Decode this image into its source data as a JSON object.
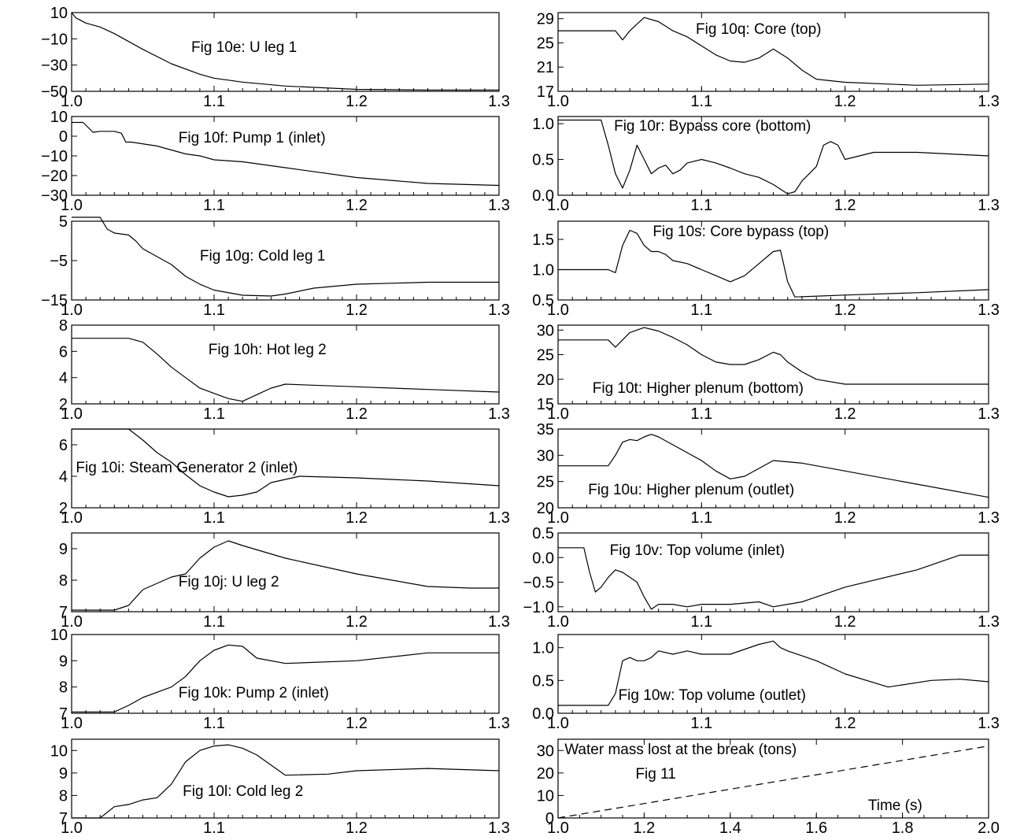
{
  "chart_data": [
    {
      "type": "line",
      "title": "Fig 10e: U leg 1",
      "xlim": [
        1.0,
        1.3
      ],
      "ylim": [
        -50,
        10
      ],
      "xticks": [
        "1.0",
        "1.1",
        "1.2",
        "1.3"
      ],
      "yticks": [
        {
          "v": 10,
          "label": "10"
        },
        {
          "v": -10,
          "label": "−10"
        },
        {
          "v": -30,
          "label": "−30"
        },
        {
          "v": -50,
          "label": "−50"
        }
      ],
      "x": [
        1.0,
        1.003,
        1.01,
        1.02,
        1.03,
        1.05,
        1.07,
        1.09,
        1.1,
        1.12,
        1.15,
        1.2,
        1.25,
        1.3
      ],
      "y": [
        10,
        6,
        2,
        -1,
        -6,
        -18,
        -29,
        -37,
        -40,
        -43,
        -46,
        -48.5,
        -49,
        -49
      ]
    },
    {
      "type": "line",
      "title": "Fig 10f: Pump 1 (inlet)",
      "xlim": [
        1.0,
        1.3
      ],
      "ylim": [
        -30,
        10
      ],
      "xticks": [
        "1.0",
        "1.1",
        "1.2",
        "1.3"
      ],
      "yticks": [
        {
          "v": 10,
          "label": "10"
        },
        {
          "v": 0,
          "label": "0"
        },
        {
          "v": -10,
          "label": "−10"
        },
        {
          "v": -20,
          "label": "−20"
        },
        {
          "v": -30,
          "label": "−30"
        }
      ],
      "x": [
        1.0,
        1.008,
        1.015,
        1.02,
        1.03,
        1.035,
        1.038,
        1.042,
        1.06,
        1.07,
        1.08,
        1.09,
        1.1,
        1.12,
        1.15,
        1.2,
        1.25,
        1.3
      ],
      "y": [
        7,
        7,
        2,
        2.5,
        2.5,
        1.5,
        -3,
        -3,
        -5,
        -7,
        -9,
        -10,
        -12,
        -13,
        -16,
        -21,
        -24,
        -25
      ]
    },
    {
      "type": "line",
      "title": "Fig 10g: Cold leg 1",
      "xlim": [
        1.0,
        1.3
      ],
      "ylim": [
        -15,
        5
      ],
      "xticks": [
        "1.0",
        "1.1",
        "1.2",
        "1.3"
      ],
      "yticks": [
        {
          "v": 5,
          "label": "5"
        },
        {
          "v": -5,
          "label": "−5"
        },
        {
          "v": -15,
          "label": "−15"
        }
      ],
      "x": [
        1.0,
        1.02,
        1.025,
        1.03,
        1.04,
        1.045,
        1.05,
        1.06,
        1.07,
        1.08,
        1.09,
        1.1,
        1.12,
        1.14,
        1.15,
        1.17,
        1.2,
        1.25,
        1.3
      ],
      "y": [
        6,
        6,
        3,
        2,
        1.5,
        0,
        -2,
        -4,
        -6,
        -9,
        -11,
        -12.5,
        -13.8,
        -14,
        -13.5,
        -12,
        -11,
        -10.5,
        -10.5
      ]
    },
    {
      "type": "line",
      "title": "Fig 10h: Hot leg 2",
      "xlim": [
        1.0,
        1.3
      ],
      "ylim": [
        2,
        8
      ],
      "xticks": [
        "1.0",
        "1.1",
        "1.2",
        "1.3"
      ],
      "yticks": [
        {
          "v": 8,
          "label": "8"
        },
        {
          "v": 6,
          "label": "6"
        },
        {
          "v": 4,
          "label": "4"
        },
        {
          "v": 2,
          "label": "2"
        }
      ],
      "x": [
        1.0,
        1.04,
        1.05,
        1.06,
        1.07,
        1.08,
        1.09,
        1.1,
        1.11,
        1.12,
        1.13,
        1.14,
        1.15,
        1.2,
        1.25,
        1.3
      ],
      "y": [
        7,
        7,
        6.7,
        5.8,
        4.8,
        4,
        3.2,
        2.8,
        2.4,
        2.2,
        2.7,
        3.2,
        3.5,
        3.3,
        3.1,
        2.9
      ]
    },
    {
      "type": "line",
      "title": "Fig 10i: Steam Generator 2 (inlet)",
      "xlim": [
        1.0,
        1.3
      ],
      "ylim": [
        2,
        7
      ],
      "xticks": [
        "1.0",
        "1.1",
        "1.2",
        "1.3"
      ],
      "yticks": [
        {
          "v": 6,
          "label": "6"
        },
        {
          "v": 4,
          "label": "4"
        },
        {
          "v": 2,
          "label": "2"
        }
      ],
      "x": [
        1.0,
        1.04,
        1.05,
        1.06,
        1.07,
        1.08,
        1.09,
        1.1,
        1.11,
        1.12,
        1.13,
        1.14,
        1.16,
        1.2,
        1.25,
        1.3
      ],
      "y": [
        7,
        7,
        6.3,
        5.5,
        4.9,
        4.1,
        3.4,
        3,
        2.7,
        2.8,
        3,
        3.6,
        4,
        3.9,
        3.7,
        3.4
      ]
    },
    {
      "type": "line",
      "title": "Fig 10j: U leg 2",
      "xlim": [
        1.0,
        1.3
      ],
      "ylim": [
        7,
        9.5
      ],
      "xticks": [
        "1.0",
        "1.1",
        "1.2",
        "1.3"
      ],
      "yticks": [
        {
          "v": 9,
          "label": "9"
        },
        {
          "v": 8,
          "label": "8"
        },
        {
          "v": 7,
          "label": "7"
        }
      ],
      "x": [
        1.0,
        1.03,
        1.04,
        1.05,
        1.06,
        1.07,
        1.08,
        1.09,
        1.1,
        1.11,
        1.12,
        1.15,
        1.2,
        1.25,
        1.28,
        1.3
      ],
      "y": [
        7.05,
        7.05,
        7.2,
        7.7,
        7.9,
        8.1,
        8.2,
        8.7,
        9.05,
        9.25,
        9.1,
        8.7,
        8.2,
        7.8,
        7.75,
        7.75
      ]
    },
    {
      "type": "line",
      "title": "Fig 10k: Pump 2 (inlet)",
      "xlim": [
        1.0,
        1.3
      ],
      "ylim": [
        7,
        10
      ],
      "xticks": [
        "1.0",
        "1.1",
        "1.2",
        "1.3"
      ],
      "yticks": [
        {
          "v": 10,
          "label": "10"
        },
        {
          "v": 9,
          "label": "9"
        },
        {
          "v": 8,
          "label": "8"
        },
        {
          "v": 7,
          "label": "7"
        }
      ],
      "x": [
        1.0,
        1.03,
        1.04,
        1.05,
        1.06,
        1.07,
        1.08,
        1.09,
        1.1,
        1.11,
        1.12,
        1.13,
        1.15,
        1.2,
        1.25,
        1.3
      ],
      "y": [
        7.05,
        7.05,
        7.3,
        7.6,
        7.8,
        8,
        8.4,
        9,
        9.4,
        9.6,
        9.55,
        9.1,
        8.9,
        9,
        9.3,
        9.3
      ]
    },
    {
      "type": "line",
      "title": "Fig 10l: Cold leg 2",
      "xlim": [
        1.0,
        1.3
      ],
      "ylim": [
        7,
        10.5
      ],
      "xticks": [
        "1.0",
        "1.1",
        "1.2",
        "1.3"
      ],
      "yticks": [
        {
          "v": 10,
          "label": "10"
        },
        {
          "v": 9,
          "label": "9"
        },
        {
          "v": 8,
          "label": "8"
        },
        {
          "v": 7,
          "label": "7"
        }
      ],
      "x": [
        1.0,
        1.02,
        1.03,
        1.04,
        1.05,
        1.06,
        1.07,
        1.08,
        1.09,
        1.1,
        1.11,
        1.12,
        1.13,
        1.15,
        1.18,
        1.2,
        1.25,
        1.3
      ],
      "y": [
        7,
        7,
        7.5,
        7.6,
        7.8,
        7.9,
        8.5,
        9.5,
        10,
        10.2,
        10.25,
        10.1,
        9.8,
        8.9,
        8.95,
        9.1,
        9.2,
        9.1
      ]
    },
    {
      "type": "line",
      "title": "Fig 10q: Core (top)",
      "xlim": [
        1.0,
        1.3
      ],
      "ylim": [
        17,
        30
      ],
      "xticks": [
        "1.0",
        "1.1",
        "1.2",
        "1.3"
      ],
      "yticks": [
        {
          "v": 29,
          "label": "29"
        },
        {
          "v": 25,
          "label": "25"
        },
        {
          "v": 21,
          "label": "21"
        },
        {
          "v": 17,
          "label": "17"
        }
      ],
      "x": [
        1.0,
        1.04,
        1.045,
        1.05,
        1.06,
        1.07,
        1.08,
        1.09,
        1.1,
        1.11,
        1.12,
        1.13,
        1.14,
        1.15,
        1.16,
        1.17,
        1.18,
        1.2,
        1.25,
        1.3
      ],
      "y": [
        27,
        27,
        25.5,
        27,
        29.2,
        28.5,
        27,
        26,
        24.5,
        23,
        22,
        21.8,
        22.5,
        24,
        22.5,
        20.5,
        19,
        18.5,
        18,
        18.2
      ]
    },
    {
      "type": "line",
      "title": "Fig 10r: Bypass core (bottom)",
      "xlim": [
        1.0,
        1.3
      ],
      "ylim": [
        0,
        1.1
      ],
      "xticks": [
        "1.0",
        "1.1",
        "1.2",
        "1.3"
      ],
      "yticks": [
        {
          "v": 1.0,
          "label": "1.0"
        },
        {
          "v": 0.5,
          "label": "0.5"
        },
        {
          "v": 0.0,
          "label": "0.0"
        }
      ],
      "x": [
        1.0,
        1.03,
        1.035,
        1.04,
        1.045,
        1.05,
        1.055,
        1.06,
        1.065,
        1.07,
        1.075,
        1.08,
        1.085,
        1.09,
        1.1,
        1.11,
        1.12,
        1.13,
        1.14,
        1.15,
        1.16,
        1.165,
        1.17,
        1.18,
        1.185,
        1.19,
        1.195,
        1.2,
        1.22,
        1.25,
        1.3
      ],
      "y": [
        1.05,
        1.05,
        0.7,
        0.3,
        0.1,
        0.35,
        0.7,
        0.5,
        0.3,
        0.38,
        0.42,
        0.3,
        0.35,
        0.45,
        0.5,
        0.45,
        0.38,
        0.3,
        0.25,
        0.15,
        0.02,
        0.05,
        0.2,
        0.4,
        0.7,
        0.75,
        0.7,
        0.5,
        0.6,
        0.6,
        0.55
      ]
    },
    {
      "type": "line",
      "title": "Fig 10s: Core bypass (top)",
      "xlim": [
        1.0,
        1.3
      ],
      "ylim": [
        0.5,
        1.8
      ],
      "xticks": [
        "1.0",
        "1.1",
        "1.2",
        "1.3"
      ],
      "yticks": [
        {
          "v": 1.5,
          "label": "1.5"
        },
        {
          "v": 1.0,
          "label": "1.0"
        },
        {
          "v": 0.5,
          "label": "0.5"
        }
      ],
      "x": [
        1.0,
        1.035,
        1.04,
        1.045,
        1.05,
        1.055,
        1.06,
        1.065,
        1.07,
        1.075,
        1.08,
        1.09,
        1.1,
        1.11,
        1.12,
        1.13,
        1.14,
        1.15,
        1.155,
        1.16,
        1.165,
        1.2,
        1.25,
        1.3
      ],
      "y": [
        1.0,
        1.0,
        0.95,
        1.4,
        1.65,
        1.6,
        1.4,
        1.3,
        1.3,
        1.25,
        1.15,
        1.1,
        1.0,
        0.9,
        0.8,
        0.9,
        1.1,
        1.3,
        1.32,
        0.8,
        0.55,
        0.58,
        0.62,
        0.67
      ]
    },
    {
      "type": "line",
      "title": "Fig 10t: Higher plenum (bottom)",
      "xlim": [
        1.0,
        1.3
      ],
      "ylim": [
        15,
        31
      ],
      "xticks": [
        "1.0",
        "1.1",
        "1.2",
        "1.3"
      ],
      "yticks": [
        {
          "v": 30,
          "label": "30"
        },
        {
          "v": 25,
          "label": "25"
        },
        {
          "v": 20,
          "label": "20"
        },
        {
          "v": 15,
          "label": "15"
        }
      ],
      "x": [
        1.0,
        1.035,
        1.04,
        1.045,
        1.05,
        1.06,
        1.07,
        1.08,
        1.09,
        1.1,
        1.11,
        1.12,
        1.13,
        1.14,
        1.15,
        1.155,
        1.16,
        1.17,
        1.18,
        1.2,
        1.25,
        1.3
      ],
      "y": [
        28,
        28,
        26.5,
        28,
        29.5,
        30.5,
        29.8,
        28.5,
        27,
        25,
        23.5,
        23,
        23,
        24,
        25.5,
        25,
        23.5,
        21.5,
        20,
        19,
        19,
        19
      ]
    },
    {
      "type": "line",
      "title": "Fig 10u: Higher plenum (outlet)",
      "xlim": [
        1.0,
        1.3
      ],
      "ylim": [
        20,
        35
      ],
      "xticks": [
        "1.0",
        "1.1",
        "1.2",
        "1.3"
      ],
      "yticks": [
        {
          "v": 35,
          "label": "35"
        },
        {
          "v": 30,
          "label": "30"
        },
        {
          "v": 25,
          "label": "25"
        },
        {
          "v": 20,
          "label": "20"
        }
      ],
      "x": [
        1.0,
        1.035,
        1.04,
        1.045,
        1.05,
        1.055,
        1.06,
        1.065,
        1.07,
        1.08,
        1.09,
        1.1,
        1.11,
        1.12,
        1.13,
        1.14,
        1.15,
        1.17,
        1.2,
        1.25,
        1.3
      ],
      "y": [
        28,
        28,
        30,
        32.5,
        33,
        32.8,
        33.5,
        34,
        33.5,
        32,
        30.5,
        29,
        27,
        25.5,
        26,
        27.5,
        29,
        28.5,
        27,
        24.5,
        22
      ]
    },
    {
      "type": "line",
      "title": "Fig 10v: Top volume (inlet)",
      "xlim": [
        1.0,
        1.3
      ],
      "ylim": [
        -1.1,
        0.5
      ],
      "xticks": [
        "1.0",
        "1.1",
        "1.2",
        "1.3"
      ],
      "yticks": [
        {
          "v": 0.5,
          "label": "0.5"
        },
        {
          "v": 0.0,
          "label": "0.0"
        },
        {
          "v": -0.5,
          "label": "−0.5"
        },
        {
          "v": -1.0,
          "label": "−1.0"
        }
      ],
      "x": [
        1.0,
        1.018,
        1.022,
        1.026,
        1.03,
        1.035,
        1.04,
        1.045,
        1.05,
        1.055,
        1.06,
        1.065,
        1.07,
        1.08,
        1.09,
        1.1,
        1.12,
        1.14,
        1.15,
        1.16,
        1.17,
        1.18,
        1.2,
        1.25,
        1.28,
        1.3
      ],
      "y": [
        0.2,
        0.2,
        -0.3,
        -0.7,
        -0.6,
        -0.4,
        -0.25,
        -0.3,
        -0.4,
        -0.5,
        -0.8,
        -1.05,
        -0.95,
        -0.95,
        -1.0,
        -0.95,
        -0.95,
        -0.9,
        -1.0,
        -0.95,
        -0.9,
        -0.8,
        -0.6,
        -0.25,
        0.05,
        0.05
      ]
    },
    {
      "type": "line",
      "title": "Fig 10w: Top volume (outlet)",
      "xlim": [
        1.0,
        1.3
      ],
      "ylim": [
        0,
        1.2
      ],
      "xticks": [
        "1.0",
        "1.1",
        "1.2",
        "1.3"
      ],
      "yticks": [
        {
          "v": 1.0,
          "label": "1.0"
        },
        {
          "v": 0.5,
          "label": "0.5"
        },
        {
          "v": 0.0,
          "label": "0.0"
        }
      ],
      "x": [
        1.0,
        1.035,
        1.04,
        1.045,
        1.05,
        1.055,
        1.06,
        1.065,
        1.07,
        1.08,
        1.09,
        1.1,
        1.12,
        1.14,
        1.15,
        1.155,
        1.16,
        1.18,
        1.2,
        1.23,
        1.26,
        1.28,
        1.3
      ],
      "y": [
        0.12,
        0.12,
        0.3,
        0.8,
        0.85,
        0.8,
        0.8,
        0.85,
        0.95,
        0.9,
        0.95,
        0.9,
        0.9,
        1.05,
        1.1,
        1.0,
        0.95,
        0.8,
        0.6,
        0.4,
        0.5,
        0.52,
        0.48
      ]
    },
    {
      "type": "line",
      "title": "Water mass lost at the break (tons)",
      "subtitle": "Fig 11",
      "xlabel": "Time (s)",
      "dashed": true,
      "xlim": [
        1.0,
        2.0
      ],
      "ylim": [
        0,
        35
      ],
      "xticks": [
        "1.0",
        "1.2",
        "1.4",
        "1.6",
        "1.8",
        "2.0"
      ],
      "yticks": [
        {
          "v": 30,
          "label": "30"
        },
        {
          "v": 20,
          "label": "20"
        },
        {
          "v": 10,
          "label": "10"
        },
        {
          "v": 0,
          "label": "0"
        }
      ],
      "x": [
        1.0,
        1.5,
        2.0
      ],
      "y": [
        0,
        16,
        32
      ]
    }
  ]
}
